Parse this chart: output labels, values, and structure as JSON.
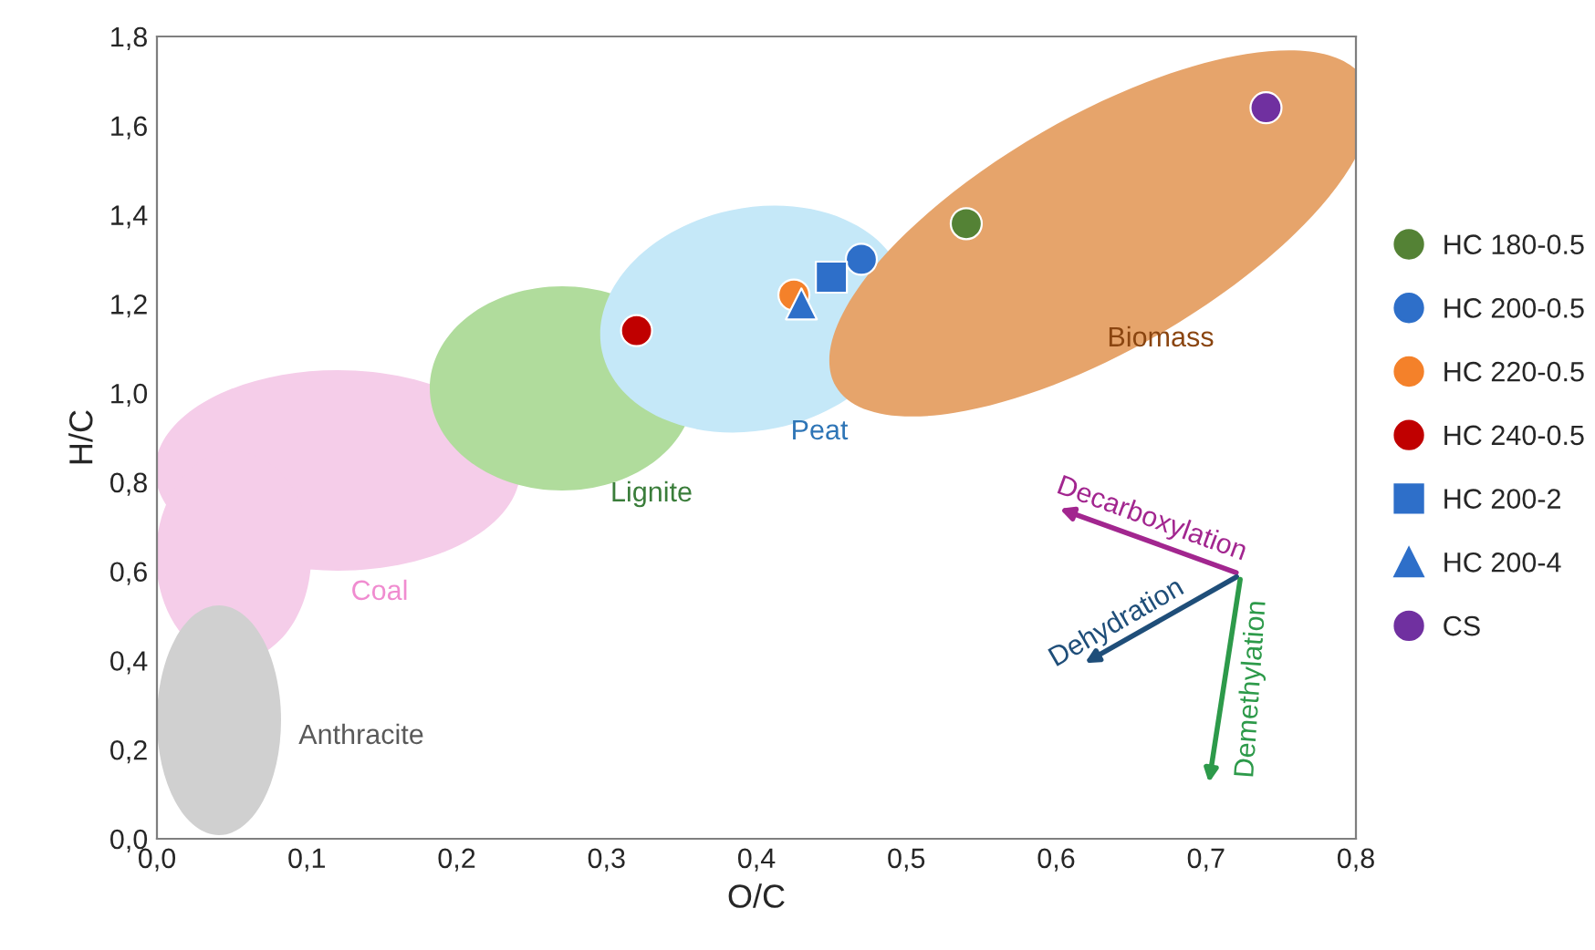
{
  "chart_data": {
    "type": "scatter",
    "xlabel": "O/C",
    "ylabel": "H/C",
    "xlim": [
      0,
      0.8
    ],
    "ylim": [
      0,
      1.8
    ],
    "xticks": [
      {
        "value": 0,
        "label": "0,0"
      },
      {
        "value": 0.1,
        "label": "0,1"
      },
      {
        "value": 0.2,
        "label": "0,2"
      },
      {
        "value": 0.3,
        "label": "0,3"
      },
      {
        "value": 0.4,
        "label": "0,4"
      },
      {
        "value": 0.5,
        "label": "0,5"
      },
      {
        "value": 0.6,
        "label": "0,6"
      },
      {
        "value": 0.7,
        "label": "0,7"
      },
      {
        "value": 0.8,
        "label": "0,8"
      }
    ],
    "yticks": [
      {
        "value": 0,
        "label": "0,0"
      },
      {
        "value": 0.2,
        "label": "0,2"
      },
      {
        "value": 0.4,
        "label": "0,4"
      },
      {
        "value": 0.6,
        "label": "0,6"
      },
      {
        "value": 0.8,
        "label": "0,8"
      },
      {
        "value": 1.0,
        "label": "1,0"
      },
      {
        "value": 1.2,
        "label": "1,2"
      },
      {
        "value": 1.4,
        "label": "1,4"
      },
      {
        "value": 1.6,
        "label": "1,6"
      },
      {
        "value": 1.8,
        "label": "1,8"
      }
    ],
    "grid": false,
    "legend": "right",
    "series": [
      {
        "name": "HC 180-0.5",
        "color": "#548235",
        "marker": "circle",
        "x": [
          0.54
        ],
        "values": [
          1.38
        ]
      },
      {
        "name": "HC 200-0.5",
        "color": "#2e6fc9",
        "marker": "circle",
        "x": [
          0.47
        ],
        "values": [
          1.3
        ]
      },
      {
        "name": "HC 220-0.5",
        "color": "#f4812a",
        "marker": "circle",
        "x": [
          0.425
        ],
        "values": [
          1.22
        ]
      },
      {
        "name": "HC 240-0.5",
        "color": "#c00000",
        "marker": "circle",
        "x": [
          0.32
        ],
        "values": [
          1.14
        ]
      },
      {
        "name": "HC 200-2",
        "color": "#2e6fc9",
        "marker": "square",
        "x": [
          0.45
        ],
        "values": [
          1.26
        ]
      },
      {
        "name": "HC 200-4",
        "color": "#2e6fc9",
        "marker": "triangle",
        "x": [
          0.43
        ],
        "values": [
          1.2
        ]
      },
      {
        "name": "CS",
        "color": "#7030a0",
        "marker": "circle",
        "x": [
          0.74
        ],
        "values": [
          1.64
        ]
      }
    ],
    "annotations": [
      "Coal",
      "Lignite",
      "Peat",
      "Biomass",
      "Anthracite",
      "Decarboxylation",
      "Dehydration",
      "Demethylation"
    ]
  }
}
